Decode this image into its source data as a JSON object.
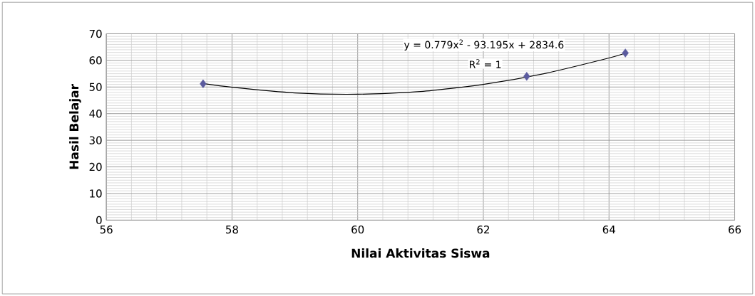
{
  "chart_data": {
    "type": "scatter",
    "xlabel": "Nilai Aktivitas Siswa",
    "ylabel": "Hasil Belajar",
    "xlim": [
      56,
      66
    ],
    "xticks": [
      56,
      58,
      60,
      62,
      64,
      66
    ],
    "ylim": [
      0,
      70
    ],
    "yticks": [
      0,
      10,
      20,
      30,
      40,
      50,
      60,
      70
    ],
    "grid": true,
    "marker": "diamond",
    "series": [
      {
        "color": "#5b5b9e",
        "x": [
          57.54,
          62.69,
          64.26
        ],
        "values": [
          51.2,
          54,
          62.8
        ]
      },
      {
        "type": "line",
        "color": "#000000",
        "marker": "none",
        "x": [
          57.54,
          58,
          59,
          60,
          61,
          62,
          63,
          64,
          64.26
        ],
        "values": [
          51.3,
          49.9,
          47.8,
          47.3,
          48.3,
          51.0,
          55.2,
          60.9,
          62.7
        ]
      }
    ],
    "annotations": [
      "y = 0.779x$^{2}$ - 93.195x + 2834.6",
      "R$^{2}$ = 1"
    ]
  }
}
